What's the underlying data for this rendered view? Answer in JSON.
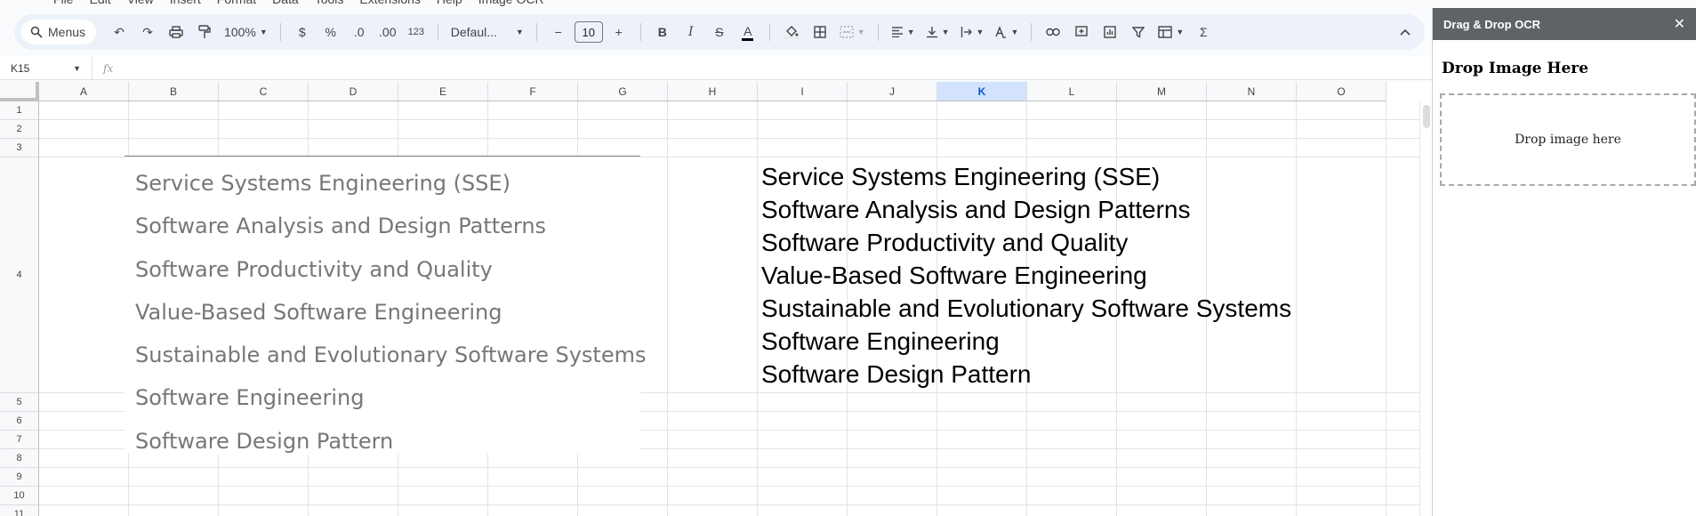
{
  "menu": [
    "File",
    "Edit",
    "View",
    "Insert",
    "Format",
    "Data",
    "Tools",
    "Extensions",
    "Help",
    "Image OCR"
  ],
  "toolbar": {
    "search_label": "Menus",
    "zoom": "100%",
    "currency": "$",
    "percent": "%",
    "dec_decrease": ".0",
    "dec_increase": ".00",
    "number_format": "123",
    "font": "Defaul...",
    "font_size": "10",
    "minus": "−",
    "plus": "+",
    "bold": "B",
    "italic": "I",
    "strike": "S",
    "text_color": "A",
    "sum": "Σ"
  },
  "formula_bar": {
    "name_box": "K15",
    "fx": "fx",
    "value": ""
  },
  "columns": [
    "A",
    "B",
    "C",
    "D",
    "E",
    "F",
    "G",
    "H",
    "I",
    "J",
    "K",
    "L",
    "M",
    "N",
    "O"
  ],
  "active_column": "K",
  "rows": [
    "1",
    "2",
    "3",
    "4",
    "5",
    "6",
    "7",
    "8",
    "9",
    "10",
    "11"
  ],
  "image_lines": [
    "Service Systems Engineering (SSE)",
    "Software Analysis and Design Patterns",
    "Software Productivity and Quality",
    "Value-Based Software Engineering",
    "Sustainable and Evolutionary Software Systems",
    "Software Engineering",
    "Software Design Pattern"
  ],
  "cell_lines": [
    "Service Systems Engineering (SSE)",
    "Software Analysis and Design Patterns",
    "Software Productivity and Quality",
    "Value-Based Software Engineering",
    "Sustainable and Evolutionary Software Systems",
    "Software Engineering",
    "Software Design Pattern"
  ],
  "side_panel": {
    "header": "Drag & Drop OCR",
    "close": "✕",
    "title": "Drop Image Here",
    "dropzone_text": "Drop image here"
  }
}
